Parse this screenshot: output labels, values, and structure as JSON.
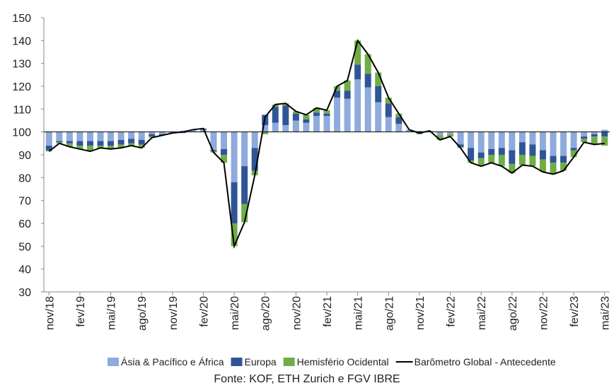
{
  "chart_data": {
    "type": "bar",
    "source": "Fonte: KOF, ETH Zurich e FGV IBRE",
    "bar_base": 100,
    "ylim": [
      30,
      150
    ],
    "yticks": [
      30,
      40,
      50,
      60,
      70,
      80,
      90,
      100,
      110,
      120,
      130,
      140,
      150
    ],
    "legend": "bottom",
    "categories": [
      "nov/18",
      null,
      null,
      "fev/19",
      null,
      null,
      "mai/19",
      null,
      null,
      "ago/19",
      null,
      null,
      "nov/19",
      null,
      null,
      "fev/20",
      null,
      null,
      "mai/20",
      null,
      null,
      "ago/20",
      null,
      null,
      "nov/20",
      null,
      null,
      "fev/21",
      null,
      null,
      "mai/21",
      null,
      null,
      "ago/21",
      null,
      null,
      "nov/21",
      null,
      null,
      "fev/22",
      null,
      null,
      "mai/22",
      null,
      null,
      "ago/22",
      null,
      null,
      "nov/22",
      null,
      null,
      "fev/23",
      null,
      null,
      "mai/23"
    ],
    "series": [
      {
        "name": "Ásia & Pacífico e África",
        "type": "bar",
        "color": "#8faadc",
        "values": [
          -6,
          -4,
          -4,
          -4,
          -4,
          -4,
          -4,
          -3.5,
          -3,
          -3.5,
          -1,
          -1,
          -0.5,
          0.5,
          1,
          1,
          -8,
          -7.5,
          -22,
          -15,
          -7,
          3,
          4,
          3,
          5,
          4,
          7,
          7,
          15,
          14.5,
          23,
          19.5,
          13,
          6.5,
          3.5,
          1,
          0.5,
          0.5,
          -1.5,
          -1,
          -5.5,
          -7,
          -9,
          -7.5,
          -7,
          -8,
          -4.5,
          -5.5,
          -8,
          -10.5,
          -10.5,
          -7,
          -2,
          -1,
          1
        ]
      },
      {
        "name": "Europa",
        "type": "bar",
        "color": "#2f5597",
        "values": [
          -2,
          -0.5,
          -1,
          -2,
          -2,
          -2,
          -2,
          -2,
          -2,
          -2,
          -1,
          -0.5,
          0,
          -0.5,
          0,
          0.5,
          -0.5,
          -2.5,
          -18,
          -16.5,
          -10,
          4.5,
          7,
          8.5,
          3,
          1.5,
          1.5,
          1,
          3,
          3.5,
          6.5,
          6,
          7,
          6,
          3,
          0,
          0,
          0,
          0,
          0,
          -1,
          -5.5,
          -2.5,
          -2.5,
          -3,
          -6,
          -5.5,
          -5,
          -4,
          -3,
          -3,
          -1,
          -1,
          -1,
          -2
        ]
      },
      {
        "name": "Hemisfério Ocidental",
        "type": "bar",
        "color": "#70ad47",
        "values": [
          -0.5,
          -0.5,
          -1.5,
          -1.5,
          -2.5,
          -1,
          -1.5,
          -1.5,
          -1,
          -1.5,
          -0.5,
          0,
          0,
          0,
          0,
          0,
          -0.5,
          -3.5,
          -10,
          -8,
          -2,
          -1,
          1,
          1,
          1,
          2,
          2,
          1.5,
          2,
          4.5,
          10.5,
          8.5,
          6,
          2.5,
          1.5,
          0,
          -1,
          0,
          -2,
          -1,
          -0.5,
          -1,
          -3.5,
          -3.5,
          -5,
          -4,
          -4.5,
          -4.5,
          -5.5,
          -5,
          -3.5,
          -3,
          -1.5,
          -3.5,
          -4
        ]
      },
      {
        "name": "Barômetro Global - Antecedente",
        "type": "line",
        "color": "#000000",
        "values": [
          91.5,
          95,
          93.5,
          92.5,
          91.5,
          93,
          92.5,
          93,
          94,
          93,
          97.5,
          98.5,
          99.5,
          100,
          101,
          101.5,
          91,
          86.5,
          50,
          60.5,
          81,
          106.5,
          112,
          112.5,
          109,
          107.5,
          110.5,
          109.5,
          120,
          122.5,
          140,
          134,
          126,
          115,
          108,
          101,
          99.5,
          100.5,
          96.5,
          98,
          93,
          86.5,
          85,
          86.5,
          85,
          82,
          85.5,
          85,
          82.5,
          81.5,
          83,
          89,
          95.5,
          94.5,
          95
        ]
      }
    ]
  }
}
